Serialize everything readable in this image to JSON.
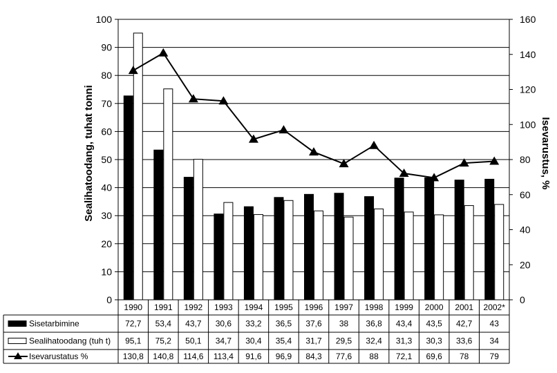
{
  "chart_data": {
    "type": "bar",
    "categories": [
      "1990",
      "1991",
      "1992",
      "1993",
      "1994",
      "1995",
      "1996",
      "1997",
      "1998",
      "1999",
      "2000",
      "2001",
      "2002*"
    ],
    "series": [
      {
        "name": "Sisetarbimine",
        "kind": "bar",
        "fill": "#000000",
        "axis": "left",
        "values": [
          72.7,
          53.4,
          43.7,
          30.6,
          33.2,
          36.5,
          37.6,
          38,
          36.8,
          43.4,
          43.5,
          42.7,
          43
        ],
        "labels": [
          "72,7",
          "53,4",
          "43,7",
          "30,6",
          "33,2",
          "36,5",
          "37,6",
          "38",
          "36,8",
          "43,4",
          "43,5",
          "42,7",
          "43"
        ]
      },
      {
        "name": "Sealihatoodang (tuh t)",
        "kind": "bar",
        "fill": "#ffffff",
        "axis": "left",
        "values": [
          95.1,
          75.2,
          50.1,
          34.7,
          30.4,
          35.4,
          31.7,
          29.5,
          32.4,
          31.3,
          30.3,
          33.6,
          34
        ],
        "labels": [
          "95,1",
          "75,2",
          "50,1",
          "34,7",
          "30,4",
          "35,4",
          "31,7",
          "29,5",
          "32,4",
          "31,3",
          "30,3",
          "33,6",
          "34"
        ]
      },
      {
        "name": "Isevarustatus %",
        "kind": "line",
        "marker": "triangle",
        "axis": "right",
        "values": [
          130.8,
          140.8,
          114.6,
          113.4,
          91.6,
          96.9,
          84.3,
          77.6,
          88,
          72.1,
          69.6,
          78,
          79
        ],
        "labels": [
          "130,8",
          "140,8",
          "114,6",
          "113,4",
          "91,6",
          "96,9",
          "84,3",
          "77,6",
          "88",
          "72,1",
          "69,6",
          "78",
          "79"
        ]
      }
    ],
    "ylabel": "Sealihatoodang, tuhat tonni",
    "ylabel_right": "Isevarustus, %",
    "ylim": [
      0,
      100
    ],
    "ylim_right": [
      0,
      160
    ],
    "yticks": [
      "0",
      "10",
      "20",
      "30",
      "40",
      "50",
      "60",
      "70",
      "80",
      "90",
      "100"
    ],
    "yticks_right": [
      "0",
      "20",
      "40",
      "60",
      "80",
      "100",
      "120",
      "140",
      "160"
    ],
    "grid": "horizontal",
    "legend": "data-table"
  }
}
